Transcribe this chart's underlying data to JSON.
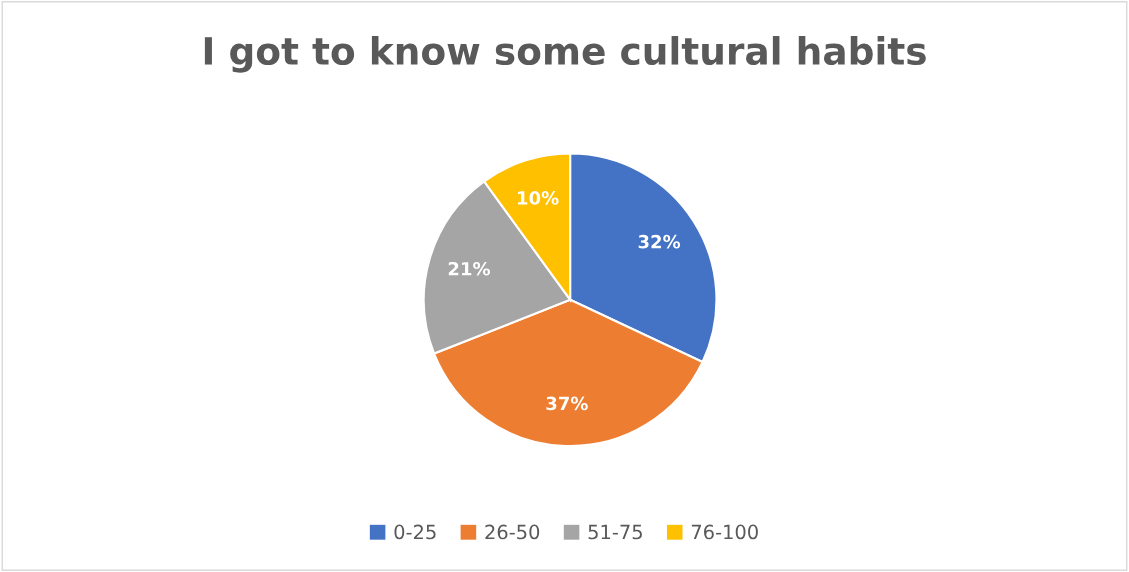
{
  "chart_data": {
    "type": "pie",
    "title": "I got to know some cultural habits",
    "categories": [
      "0-25",
      "26-50",
      "51-75",
      "76-100"
    ],
    "values": [
      32,
      37,
      21,
      10
    ],
    "colors": [
      "#4472c4",
      "#ed7d31",
      "#a5a5a5",
      "#ffc000"
    ],
    "value_labels": [
      "32%",
      "37%",
      "21%",
      "10%"
    ],
    "legend": "bottom"
  }
}
